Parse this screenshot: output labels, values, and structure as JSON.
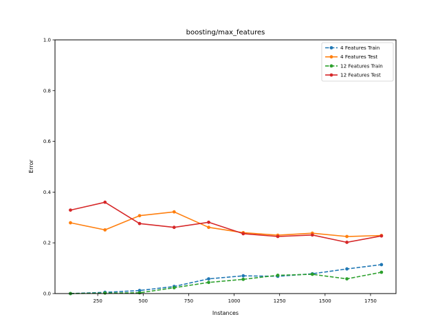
{
  "chart_data": {
    "type": "line",
    "title": "boosting/max_features",
    "xlabel": "Instances",
    "ylabel": "Error",
    "xlim": [
      15,
      1890
    ],
    "ylim": [
      0,
      1.0
    ],
    "xticks": [
      250,
      500,
      750,
      1000,
      1250,
      1500,
      1750
    ],
    "yticks": [
      0.0,
      0.2,
      0.4,
      0.6,
      0.8,
      1.0
    ],
    "grid": false,
    "legend_position": "upper right",
    "x": [
      100,
      290,
      480,
      670,
      860,
      1050,
      1240,
      1430,
      1620,
      1810
    ],
    "series": [
      {
        "name": "4 Features Train",
        "color": "#1f77b4",
        "linestyle": "dashed",
        "values": [
          0.0,
          0.005,
          0.012,
          0.028,
          0.058,
          0.07,
          0.068,
          0.078,
          0.097,
          0.114
        ]
      },
      {
        "name": "4 Features Test",
        "color": "#ff7f0e",
        "linestyle": "solid",
        "values": [
          0.279,
          0.251,
          0.307,
          0.322,
          0.261,
          0.24,
          0.23,
          0.238,
          0.225,
          0.229
        ]
      },
      {
        "name": "12 Features Train",
        "color": "#2ca02c",
        "linestyle": "dashed",
        "values": [
          0.0,
          0.002,
          0.003,
          0.023,
          0.044,
          0.056,
          0.072,
          0.076,
          0.058,
          0.084
        ]
      },
      {
        "name": "12 Features Test",
        "color": "#d62728",
        "linestyle": "solid",
        "values": [
          0.329,
          0.36,
          0.276,
          0.261,
          0.281,
          0.236,
          0.225,
          0.231,
          0.202,
          0.227
        ]
      }
    ]
  }
}
